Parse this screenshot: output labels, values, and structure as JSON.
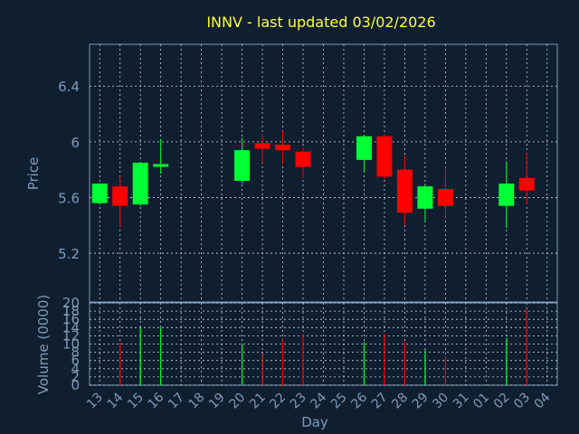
{
  "chart_data": {
    "type": "candlestick",
    "title": "INNV - last updated 03/02/2026",
    "xlabel": "Day",
    "price_panel": {
      "ylabel": "Price",
      "ylim": [
        4.85,
        6.7
      ],
      "yticks": [
        "6.4",
        "6",
        "5.6",
        "5.2"
      ],
      "ytick_values": [
        6.4,
        6.0,
        5.6,
        5.2
      ],
      "grid": true
    },
    "volume_panel": {
      "ylabel": "Volume (0000)",
      "ylim": [
        0,
        20
      ],
      "yticks": [
        "20",
        "18",
        "16",
        "14",
        "12",
        "10",
        "8",
        "6",
        "4",
        "2",
        "0"
      ],
      "ytick_values": [
        20,
        18,
        16,
        14,
        12,
        10,
        8,
        6,
        4,
        2,
        0
      ],
      "grid": true
    },
    "x_ticks": [
      "13",
      "14",
      "15",
      "16",
      "17",
      "18",
      "19",
      "20",
      "21",
      "22",
      "23",
      "24",
      "25",
      "26",
      "27",
      "28",
      "29",
      "30",
      "31",
      "01",
      "02",
      "03",
      "04"
    ],
    "candles": [
      {
        "x": 0,
        "open": 5.56,
        "high": 5.7,
        "low": 5.55,
        "close": 5.7,
        "volume": 0
      },
      {
        "x": 1,
        "open": 5.68,
        "high": 5.75,
        "low": 5.38,
        "close": 5.54,
        "volume": 10.5
      },
      {
        "x": 2,
        "open": 5.55,
        "high": 5.85,
        "low": 5.54,
        "close": 5.85,
        "volume": 14
      },
      {
        "x": 3,
        "open": 5.83,
        "high": 6.02,
        "low": 5.77,
        "close": 5.84,
        "volume": 14
      },
      {
        "x": 7,
        "open": 5.72,
        "high": 6.03,
        "low": 5.7,
        "close": 5.94,
        "volume": 10
      },
      {
        "x": 8,
        "open": 5.99,
        "high": 6.05,
        "low": 5.85,
        "close": 5.95,
        "volume": 7.5
      },
      {
        "x": 9,
        "open": 5.98,
        "high": 6.08,
        "low": 5.84,
        "close": 5.94,
        "volume": 11
      },
      {
        "x": 10,
        "open": 5.93,
        "high": 5.96,
        "low": 5.74,
        "close": 5.82,
        "volume": 12.5
      },
      {
        "x": 13,
        "open": 5.87,
        "high": 6.05,
        "low": 5.78,
        "close": 6.04,
        "volume": 10.5
      },
      {
        "x": 14,
        "open": 6.04,
        "high": 6.05,
        "low": 5.73,
        "close": 5.75,
        "volume": 12.5
      },
      {
        "x": 15,
        "open": 5.8,
        "high": 5.9,
        "low": 5.4,
        "close": 5.49,
        "volume": 10.5
      },
      {
        "x": 16,
        "open": 5.52,
        "high": 5.7,
        "low": 5.43,
        "close": 5.68,
        "volume": 8.5
      },
      {
        "x": 17,
        "open": 5.66,
        "high": 5.82,
        "low": 5.45,
        "close": 5.54,
        "volume": 7
      },
      {
        "x": 20,
        "open": 5.54,
        "high": 5.86,
        "low": 5.38,
        "close": 5.7,
        "volume": 11.5
      },
      {
        "x": 21,
        "open": 5.74,
        "high": 5.92,
        "low": 5.55,
        "close": 5.65,
        "volume": 18.5
      }
    ],
    "colors": {
      "background": "#0f1f30",
      "grid": "#c9d3de",
      "axis_text": "#7e9ab8",
      "title": "#ffff33",
      "up": "#00ff33",
      "down": "#ff0000"
    }
  }
}
